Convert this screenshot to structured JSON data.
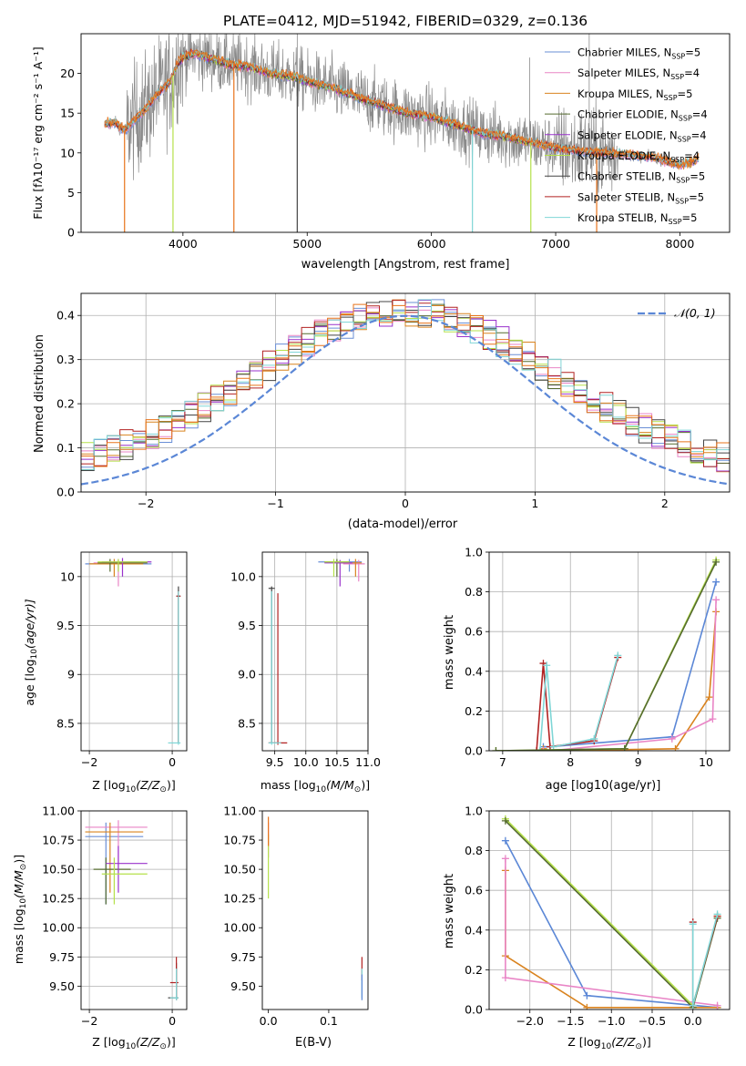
{
  "colors": {
    "chabrier_miles": "#6a8fd6",
    "salpeter_miles": "#e985c6",
    "kroupa_miles": "#d9831f",
    "chabrier_elodie": "#556b2f",
    "salpeter_elodie": "#9932cc",
    "kroupa_elodie": "#b5e14a",
    "chabrier_stelib": "#444444",
    "salpeter_stelib": "#b22222",
    "kroupa_stelib": "#7fd6d6",
    "data": "#8a8a8a",
    "grid": "#b0b0b0",
    "orange": "#e8731a",
    "normal_curve": "#5b87d6"
  },
  "chart_data": [
    {
      "id": "spectrum",
      "type": "line",
      "title": "PLATE=0412, MJD=51942, FIBERID=0329, z=0.136",
      "xlabel": "wavelength [Angstrom, rest frame]",
      "ylabel": "Flux [fλ10⁻¹⁷ erg cm⁻² s⁻¹ A⁻¹]",
      "xlim": [
        3180,
        8400
      ],
      "ylim": [
        0,
        25
      ],
      "xticks": [
        4000,
        5000,
        6000,
        7000,
        8000
      ],
      "yticks": [
        0,
        5,
        10,
        15,
        20
      ],
      "grid": false,
      "legend_position": "top-right",
      "legend": [
        {
          "main": "Chabrier MILES, N",
          "sub": "SSP",
          "tail": "=5",
          "color_key": "chabrier_miles"
        },
        {
          "main": "Salpeter MILES, N",
          "sub": "SSP",
          "tail": "=4",
          "color_key": "salpeter_miles"
        },
        {
          "main": "Kroupa MILES, N",
          "sub": "SSP",
          "tail": "=5",
          "color_key": "kroupa_miles"
        },
        {
          "main": "Chabrier ELODIE, N",
          "sub": "SSP",
          "tail": "=4",
          "color_key": "chabrier_elodie"
        },
        {
          "main": "Salpeter ELODIE, N",
          "sub": "SSP",
          "tail": "=4",
          "color_key": "salpeter_elodie"
        },
        {
          "main": "Kroupa ELODIE, N",
          "sub": "SSP",
          "tail": "=4",
          "color_key": "kroupa_elodie"
        },
        {
          "main": "Chabrier STELIB, N",
          "sub": "SSP",
          "tail": "=5",
          "color_key": "chabrier_stelib"
        },
        {
          "main": "Salpeter STELIB, N",
          "sub": "SSP",
          "tail": "=5",
          "color_key": "salpeter_stelib"
        },
        {
          "main": "Kroupa STELIB, N",
          "sub": "SSP",
          "tail": "=5",
          "color_key": "kroupa_stelib"
        }
      ],
      "model_curve": {
        "x": [
          3370,
          3450,
          3530,
          3600,
          3700,
          3800,
          3900,
          3950,
          4000,
          4100,
          4200,
          4300,
          4400,
          4500,
          4600,
          4700,
          4800,
          4900,
          5000,
          5200,
          5400,
          5600,
          5800,
          6000,
          6200,
          6400,
          6600,
          6800,
          7000,
          7200,
          7400,
          7600,
          7800,
          8000,
          8150
        ],
        "y": [
          13.6,
          13.8,
          12.8,
          14.0,
          15.5,
          17.5,
          19.0,
          21.0,
          22.0,
          22.5,
          22.0,
          21.5,
          21.0,
          21.0,
          20.5,
          20.0,
          19.8,
          19.5,
          19.0,
          18.2,
          17.0,
          16.0,
          15.0,
          14.5,
          13.5,
          12.5,
          12.0,
          11.3,
          10.6,
          10.2,
          10.0,
          9.7,
          9.4,
          8.4,
          9.2
        ]
      },
      "data_dips": [
        {
          "x": 3530,
          "y": 0
        },
        {
          "x": 3920,
          "y": 0
        },
        {
          "x": 4410,
          "y": 0
        },
        {
          "x": 4920,
          "y": 0
        },
        {
          "x": 6330,
          "y": 0
        },
        {
          "x": 6800,
          "y": 0
        },
        {
          "x": 7330,
          "y": 0
        }
      ]
    },
    {
      "id": "residuals",
      "type": "histogram",
      "xlabel": "(data-model)/error",
      "ylabel": "Normed distribution",
      "xlim": [
        -2.5,
        2.5
      ],
      "ylim": [
        0,
        0.45
      ],
      "xticks": [
        -2,
        -1,
        0,
        1,
        2
      ],
      "yticks": [
        0.0,
        0.1,
        0.2,
        0.3,
        0.4
      ],
      "grid": true,
      "legend_position": "top-right",
      "legend_label": "𝒩(0, 1)",
      "reference": "normal(0,1)"
    },
    {
      "id": "z_age",
      "type": "scatter",
      "xlabel": "Z [log10(Z/Z⊙)]",
      "ylabel": "age  [log10(age/yr)]",
      "xlim": [
        -2.2,
        0.35
      ],
      "ylim": [
        8.22,
        10.25
      ],
      "xticks": [
        -2,
        0
      ],
      "yticks": [
        8.5,
        9.0,
        9.5,
        10.0
      ],
      "grid": true
    },
    {
      "id": "mass_age",
      "type": "scatter",
      "xlabel": "mass [log10(M/M⊙)]",
      "ylabel": "",
      "xlim": [
        9.3,
        11.0
      ],
      "ylim": [
        8.22,
        10.25
      ],
      "xticks": [
        9.5,
        10.0,
        10.5,
        11.0
      ],
      "yticks": [
        8.5,
        9.0,
        9.5,
        10.0
      ],
      "grid": true
    },
    {
      "id": "age_weight",
      "type": "line",
      "xlabel": "age  [log10(age/yr)]",
      "ylabel": "mass weight",
      "xlim": [
        6.8,
        10.35
      ],
      "ylim": [
        0,
        1.0
      ],
      "xticks": [
        7,
        8,
        9,
        10
      ],
      "yticks": [
        0.0,
        0.2,
        0.4,
        0.6,
        0.8,
        1.0
      ],
      "grid": true,
      "series": [
        {
          "color_key": "normal_curve",
          "x": [
            7.6,
            7.7,
            9.5,
            10.15
          ],
          "y": [
            0.02,
            0.02,
            0.07,
            0.85
          ]
        },
        {
          "color_key": "kroupa_miles",
          "x": [
            7.6,
            7.7,
            9.55,
            10.05,
            10.15
          ],
          "y": [
            0.01,
            0.0,
            0.01,
            0.27,
            0.7
          ]
        },
        {
          "color_key": "salpeter_miles",
          "x": [
            7.6,
            7.7,
            9.5,
            10.1,
            10.15
          ],
          "y": [
            0.0,
            0.0,
            0.06,
            0.16,
            0.76
          ]
        },
        {
          "color_key": "salpeter_stelib",
          "x": [
            7.5,
            7.6,
            7.7,
            8.35,
            8.7
          ],
          "y": [
            0.0,
            0.44,
            0.02,
            0.05,
            0.47
          ]
        },
        {
          "color_key": "kroupa_stelib",
          "x": [
            7.55,
            7.65,
            7.75,
            8.35,
            8.7
          ],
          "y": [
            0.0,
            0.43,
            0.02,
            0.06,
            0.48
          ]
        },
        {
          "color_key": "kroupa_elodie",
          "x": [
            6.9,
            8.8,
            10.15
          ],
          "y": [
            0.0,
            0.01,
            0.96
          ]
        },
        {
          "color_key": "chabrier_elodie",
          "x": [
            6.9,
            8.8,
            10.15
          ],
          "y": [
            0.0,
            0.01,
            0.95
          ]
        }
      ]
    },
    {
      "id": "z_mass",
      "type": "scatter",
      "xlabel": "Z [log10(Z/Z⊙)]",
      "ylabel": "mass [log10(M/M⊙)]",
      "xlim": [
        -2.2,
        0.35
      ],
      "ylim": [
        9.3,
        11.0
      ],
      "xticks": [
        -2,
        0
      ],
      "yticks": [
        9.5,
        9.75,
        10.0,
        10.25,
        10.5,
        10.75,
        11.0
      ],
      "grid": true
    },
    {
      "id": "ebv_mass",
      "type": "scatter",
      "xlabel": "E(B-V)",
      "ylabel": "",
      "xlim": [
        -0.01,
        0.165
      ],
      "ylim": [
        9.3,
        11.0
      ],
      "xticks": [
        0.0,
        0.1
      ],
      "yticks": [
        9.5,
        9.75,
        10.0,
        10.25,
        10.5,
        10.75,
        11.0
      ],
      "grid": false
    },
    {
      "id": "z_weight",
      "type": "line",
      "xlabel": "Z [log10(Z/Z⊙)]",
      "ylabel": "mass weight",
      "xlim": [
        -2.5,
        0.45
      ],
      "ylim": [
        0,
        1.0
      ],
      "xticks": [
        -2.0,
        -1.5,
        -1.0,
        -0.5,
        0.0
      ],
      "yticks": [
        0.0,
        0.2,
        0.4,
        0.6,
        0.8,
        1.0
      ],
      "grid": true,
      "series": [
        {
          "color_key": "normal_curve",
          "x": [
            -2.3,
            -1.3,
            0.3
          ],
          "y": [
            0.85,
            0.07,
            0.01
          ]
        },
        {
          "color_key": "kroupa_miles",
          "x": [
            -2.3,
            -2.3,
            -1.3,
            0.3
          ],
          "y": [
            0.7,
            0.27,
            0.01,
            0.01
          ]
        },
        {
          "color_key": "salpeter_miles",
          "x": [
            -2.3,
            -2.3,
            0.3
          ],
          "y": [
            0.76,
            0.16,
            0.02
          ]
        },
        {
          "color_key": "kroupa_elodie",
          "x": [
            -2.3,
            0.0,
            0.3
          ],
          "y": [
            0.96,
            0.02,
            0.47
          ]
        },
        {
          "color_key": "chabrier_elodie",
          "x": [
            -2.3,
            0.0,
            0.3
          ],
          "y": [
            0.95,
            0.01,
            0.46
          ]
        },
        {
          "color_key": "salpeter_stelib",
          "x": [
            0.0,
            0.0,
            0.3
          ],
          "y": [
            0.44,
            0.02,
            0.47
          ]
        },
        {
          "color_key": "kroupa_stelib",
          "x": [
            0.0,
            0.0,
            0.3
          ],
          "y": [
            0.43,
            0.02,
            0.48
          ]
        }
      ]
    }
  ]
}
